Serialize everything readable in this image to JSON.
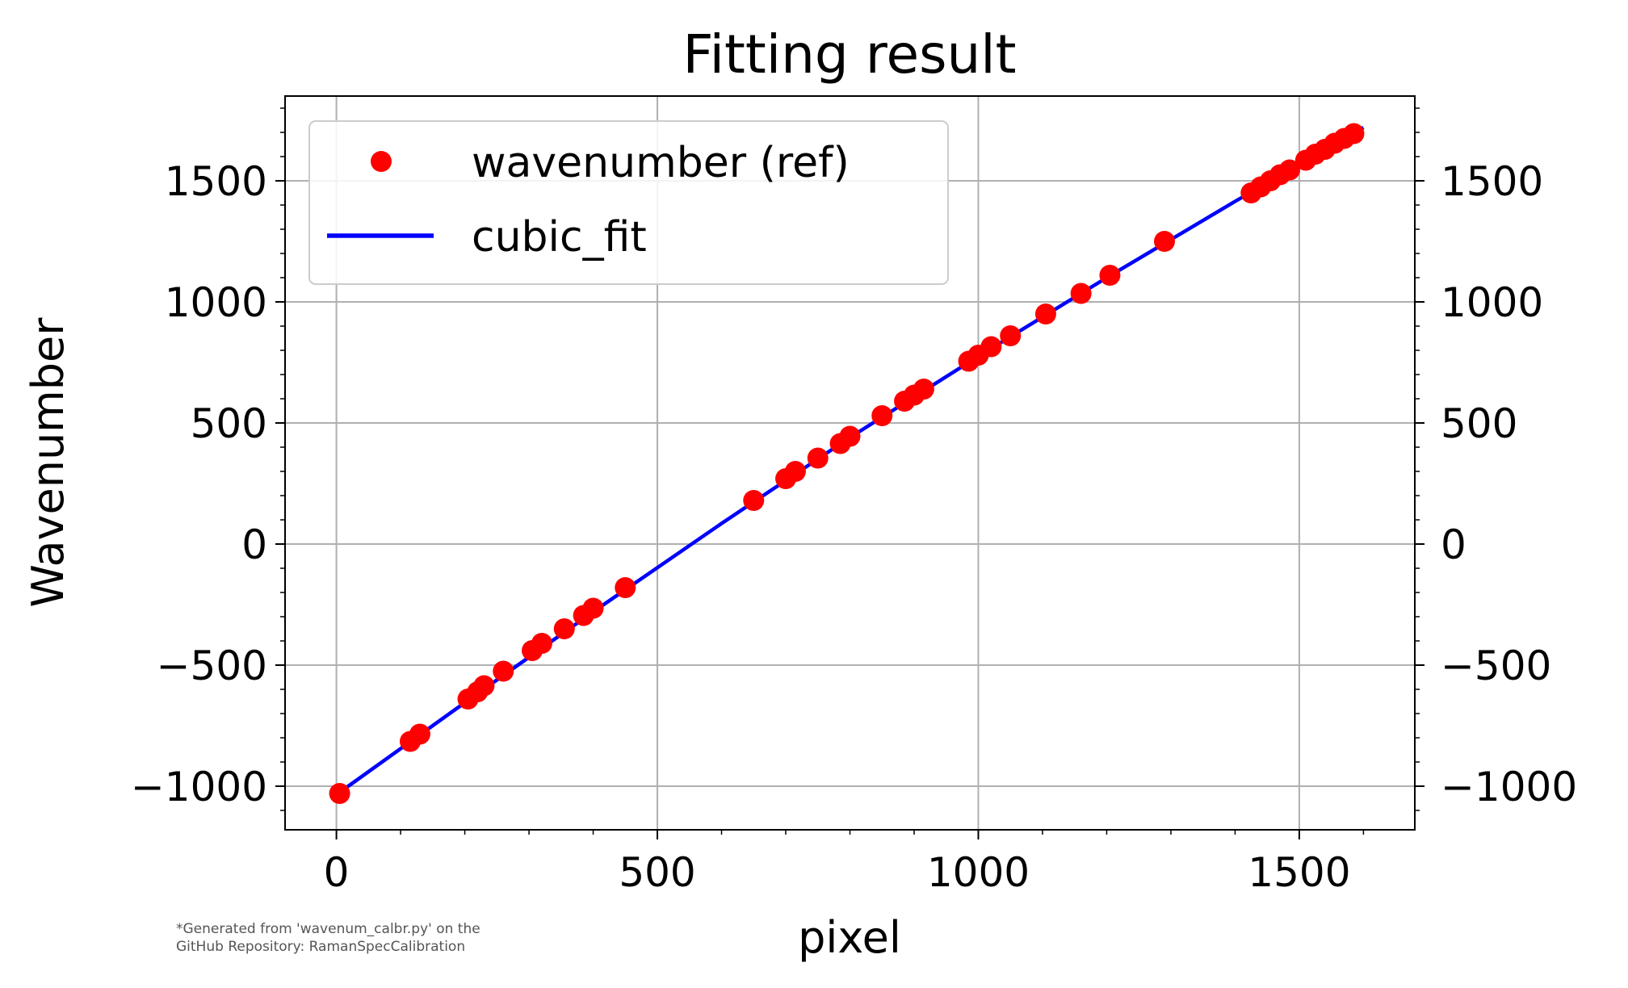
{
  "colors": {
    "points": "#ff0000",
    "fit_line": "#0000ff",
    "grid": "#b0b0b0",
    "axes": "#000000",
    "background": "#ffffff"
  },
  "footnote": {
    "line1": "*Generated from 'wavenum_calbr.py' on the",
    "line2": "GitHub Repository: RamanSpecCalibration"
  },
  "chart_data": {
    "type": "scatter",
    "title": "Fitting result",
    "xlabel": "pixel",
    "ylabel": "Wavenumber",
    "xlim": [
      -80,
      1680
    ],
    "ylim": [
      -1180,
      1850
    ],
    "xticks": [
      0,
      500,
      1000,
      1500
    ],
    "xtick_labels": [
      "0",
      "500",
      "1000",
      "1500"
    ],
    "yticks": [
      -1000,
      -500,
      0,
      500,
      1000,
      1500
    ],
    "ytick_labels": [
      "−1000",
      "−500",
      "0",
      "500",
      "1000",
      "1500"
    ],
    "right_ytick_labels": [
      "−1000",
      "−500",
      "0",
      "500",
      "1000",
      "1500"
    ],
    "grid": true,
    "legend": "upper-left",
    "series": [
      {
        "name": "wavenumber (ref)",
        "kind": "scatter",
        "x": [
          5,
          115,
          130,
          205,
          220,
          230,
          260,
          305,
          320,
          355,
          385,
          400,
          450,
          650,
          700,
          715,
          750,
          785,
          800,
          850,
          885,
          900,
          915,
          985,
          1000,
          1020,
          1050,
          1105,
          1160,
          1205,
          1290,
          1425,
          1440,
          1455,
          1470,
          1485,
          1510,
          1525,
          1540,
          1555,
          1570,
          1585
        ],
        "y": [
          -1030,
          -815,
          -785,
          -640,
          -610,
          -585,
          -525,
          -440,
          -410,
          -350,
          -295,
          -265,
          -180,
          180,
          270,
          300,
          355,
          415,
          445,
          530,
          590,
          615,
          640,
          755,
          780,
          815,
          860,
          950,
          1035,
          1110,
          1250,
          1450,
          1475,
          1500,
          1525,
          1545,
          1585,
          1610,
          1630,
          1655,
          1675,
          1695
        ]
      },
      {
        "name": "cubic_fit",
        "kind": "line",
        "x": [
          0,
          200,
          400,
          600,
          800,
          1000,
          1200,
          1400,
          1600
        ],
        "y": [
          -1035,
          -655,
          -280,
          85,
          440,
          775,
          1100,
          1415,
          1720
        ]
      }
    ]
  }
}
